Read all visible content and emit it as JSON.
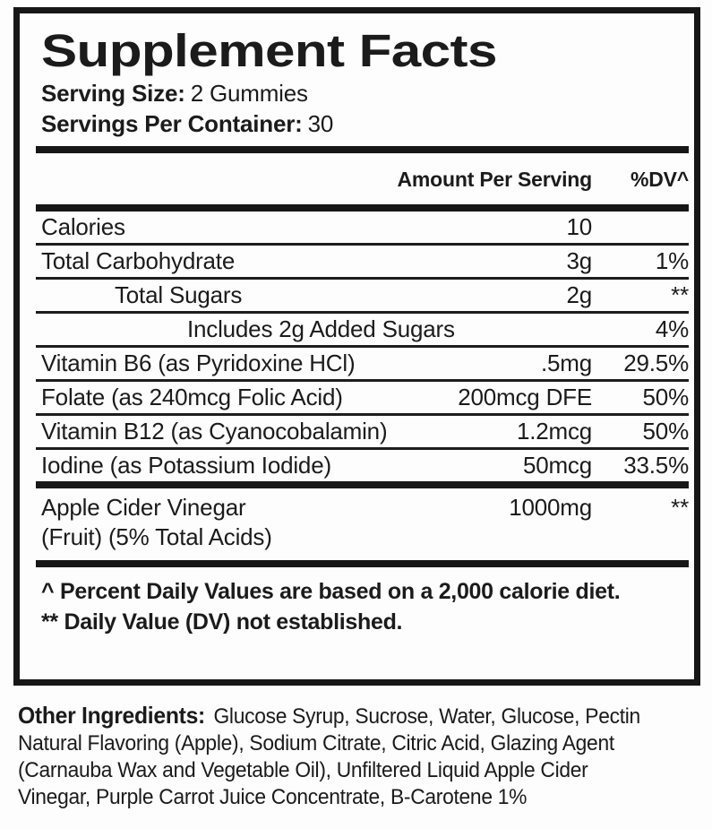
{
  "panel": {
    "title": "Supplement Facts",
    "serving_size_label": "Serving Size:",
    "serving_size_value": "2 Gummies",
    "servings_per_container_label": "Servings Per Container:",
    "servings_per_container_value": "30"
  },
  "table": {
    "amount_header": "Amount Per Serving",
    "dv_header": "%DV^",
    "rows": [
      {
        "name": "Calories",
        "amount": "10",
        "dv": ""
      },
      {
        "name": "Total Carbohydrate",
        "amount": "3g",
        "dv": "1%"
      },
      {
        "name": "Total Sugars",
        "amount": "2g",
        "dv": "**"
      },
      {
        "name": "Includes 2g Added Sugars",
        "amount": "",
        "dv": "4%"
      },
      {
        "name": "Vitamin B6 (as Pyridoxine HCl)",
        "amount": ".5mg",
        "dv": "29.5%"
      },
      {
        "name": "Folate (as 240mcg Folic Acid)",
        "amount": "200mcg DFE",
        "dv": "50%"
      },
      {
        "name": "Vitamin B12 (as Cyanocobalamin)",
        "amount": "1.2mcg",
        "dv": "50%"
      },
      {
        "name": "Iodine (as Potassium Iodide)",
        "amount": "50mcg",
        "dv": "33.5%"
      },
      {
        "name": "Apple Cider Vinegar",
        "name_line2": "(Fruit) (5% Total Acids)",
        "amount": "1000mg",
        "dv": "**"
      }
    ]
  },
  "footnotes": {
    "line1": "^ Percent Daily Values are based on a 2,000 calorie diet.",
    "line2": "** Daily Value (DV) not established."
  },
  "other_ingredients": {
    "label": "Other Ingredients:",
    "line1": "Glucose Syrup, Sucrose, Water, Glucose, Pectin",
    "line2": "Natural Flavoring (Apple), Sodium Citrate, Citric Acid, Glazing Agent",
    "line3": "(Carnauba Wax and Vegetable Oil), Unfiltered Liquid Apple Cider",
    "line4": "Vinegar, Purple Carrot Juice Concentrate, B-Carotene 1%"
  },
  "colors": {
    "text": "#1b1b1b",
    "rule": "#171717",
    "background": "#fdfdfd"
  }
}
